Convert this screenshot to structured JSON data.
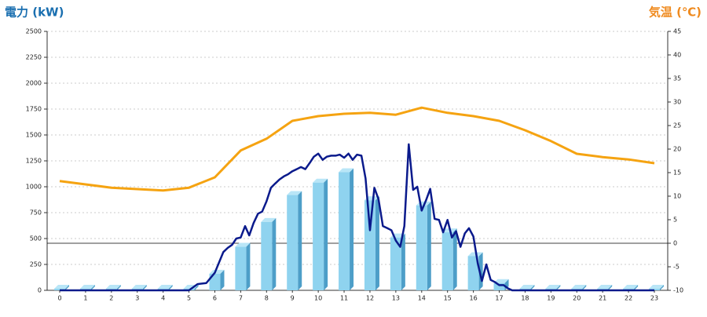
{
  "chart_data": {
    "type": "combo",
    "y_title": "電力 (kW)",
    "y2_title": "気温 (℃)",
    "categories": [
      "0",
      "1",
      "2",
      "3",
      "4",
      "5",
      "6",
      "7",
      "8",
      "9",
      "10",
      "11",
      "12",
      "13",
      "14",
      "15",
      "16",
      "17",
      "18",
      "19",
      "20",
      "21",
      "22",
      "23"
    ],
    "ylim": [
      0,
      2500
    ],
    "yticks": [
      0,
      250,
      500,
      750,
      1000,
      1250,
      1500,
      1750,
      2000,
      2250,
      2500
    ],
    "y2lim": [
      -10,
      45
    ],
    "y2ticks": [
      -10,
      -5,
      0,
      5,
      10,
      15,
      20,
      25,
      30,
      35,
      40,
      45
    ],
    "y2_reference": 0,
    "grid": true,
    "bars": {
      "color": "#8fd3ef",
      "values": [
        15,
        15,
        15,
        15,
        15,
        15,
        160,
        420,
        660,
        920,
        1040,
        1140,
        870,
        510,
        820,
        560,
        330,
        70,
        15,
        15,
        15,
        15,
        15,
        15
      ]
    },
    "power": {
      "color": "#0a1a8c",
      "x": [
        0,
        5,
        5.33,
        5.67,
        6,
        6.33,
        6.5,
        6.67,
        6.83,
        7,
        7.17,
        7.33,
        7.5,
        7.67,
        7.83,
        8,
        8.17,
        8.33,
        8.5,
        8.67,
        8.83,
        9,
        9.17,
        9.33,
        9.5,
        9.67,
        9.83,
        10,
        10.17,
        10.33,
        10.5,
        10.67,
        10.83,
        11,
        11.17,
        11.33,
        11.5,
        11.67,
        11.83,
        12,
        12.17,
        12.33,
        12.5,
        12.67,
        12.83,
        13,
        13.17,
        13.33,
        13.5,
        13.67,
        13.83,
        14,
        14.17,
        14.33,
        14.5,
        14.67,
        14.83,
        15,
        15.17,
        15.33,
        15.5,
        15.67,
        15.83,
        16,
        16.17,
        16.33,
        16.5,
        16.67,
        16.83,
        17,
        17.17,
        17.33,
        17.5,
        23
      ],
      "values": [
        0,
        0,
        60,
        70,
        170,
        370,
        410,
        440,
        500,
        510,
        620,
        530,
        650,
        740,
        760,
        860,
        990,
        1030,
        1070,
        1100,
        1120,
        1150,
        1170,
        1190,
        1170,
        1230,
        1290,
        1320,
        1260,
        1290,
        1300,
        1300,
        1310,
        1280,
        1320,
        1260,
        1310,
        1300,
        1080,
        580,
        990,
        880,
        620,
        600,
        580,
        480,
        420,
        620,
        1410,
        970,
        1000,
        770,
        870,
        980,
        690,
        680,
        560,
        680,
        510,
        570,
        420,
        550,
        600,
        520,
        260,
        90,
        250,
        100,
        80,
        50,
        50,
        20,
        0,
        0
      ]
    },
    "temperature": {
      "color": "#f5a311",
      "axis": "y2",
      "values": [
        13.2,
        12.5,
        11.8,
        11.5,
        11.2,
        11.8,
        14,
        19.7,
        22.2,
        26,
        27,
        27.5,
        27.7,
        27.3,
        28.8,
        27.7,
        27,
        26,
        24,
        21.7,
        19,
        18.3,
        17.8,
        17
      ]
    }
  }
}
